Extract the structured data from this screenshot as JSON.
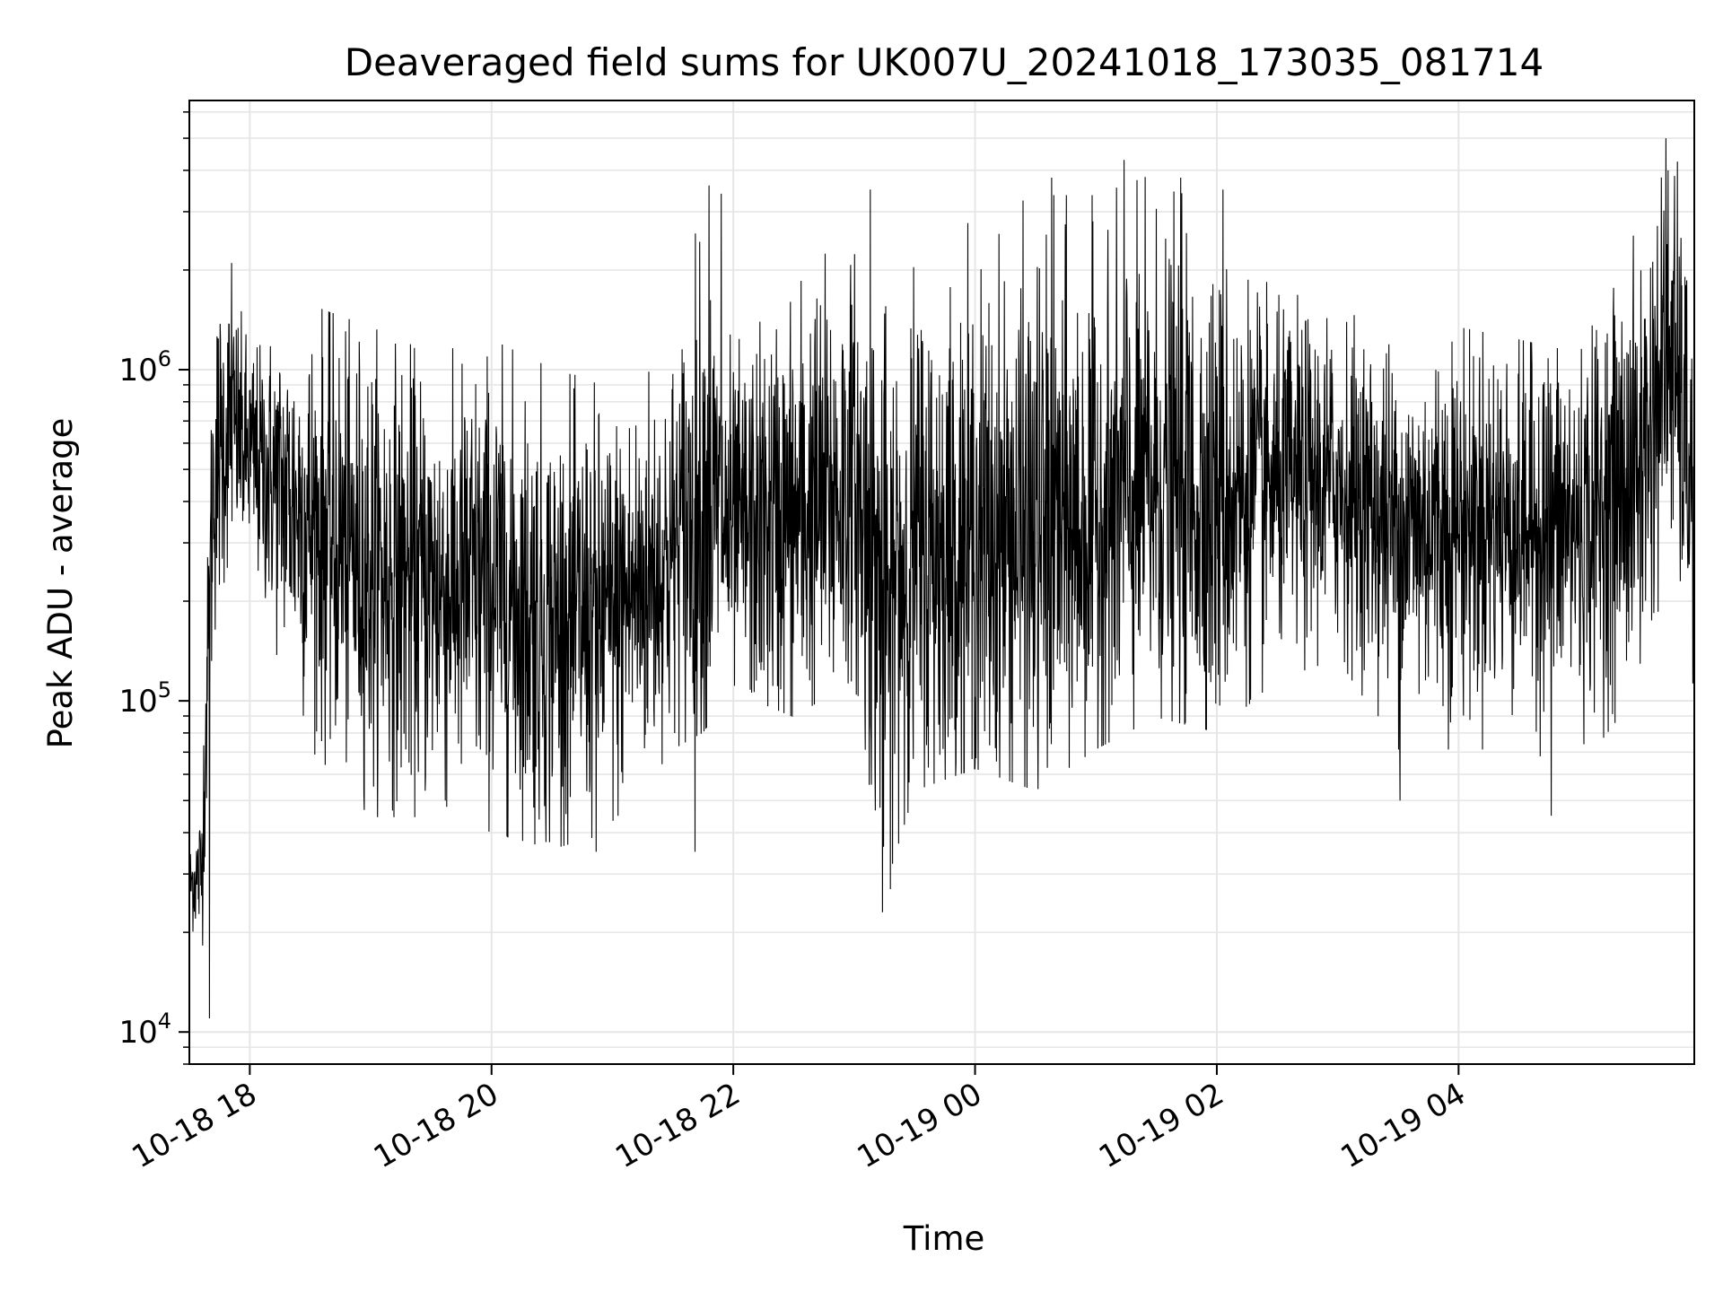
{
  "chart_data": {
    "type": "line",
    "title": "Deaveraged field sums for UK007U_20241018_173035_081714",
    "xlabel": "Time",
    "ylabel": "Peak ADU - average",
    "y_scale": "log",
    "grid": true,
    "x_range": [
      "2024-10-18 17:30",
      "2024-10-19 05:57"
    ],
    "ylim": [
      8000,
      6500000
    ],
    "x_ticks": [
      {
        "time": "2024-10-18 18:00",
        "label": "10-18 18"
      },
      {
        "time": "2024-10-18 20:00",
        "label": "10-18 20"
      },
      {
        "time": "2024-10-18 22:00",
        "label": "10-18 22"
      },
      {
        "time": "2024-10-19 00:00",
        "label": "10-19 00"
      },
      {
        "time": "2024-10-19 02:00",
        "label": "10-19 02"
      },
      {
        "time": "2024-10-19 04:00",
        "label": "10-19 04"
      }
    ],
    "y_ticks": [
      {
        "value": 10000,
        "base": "10",
        "exp": "4"
      },
      {
        "value": 100000,
        "base": "10",
        "exp": "5"
      },
      {
        "value": 1000000,
        "base": "10",
        "exp": "6"
      }
    ],
    "line_color": "#000000",
    "grid_color": "#e6e6e6",
    "envelope": [
      {
        "time": "2024-10-18 17:30",
        "low": 20000,
        "mid": 28000,
        "high": 35000
      },
      {
        "time": "2024-10-18 17:36",
        "low": 15000,
        "mid": 30000,
        "high": 45000
      },
      {
        "time": "2024-10-18 17:42",
        "low": 100000,
        "mid": 500000,
        "high": 1200000
      },
      {
        "time": "2024-10-18 17:50",
        "low": 300000,
        "mid": 700000,
        "high": 2000000
      },
      {
        "time": "2024-10-18 18:00",
        "low": 200000,
        "mid": 550000,
        "high": 1000000
      },
      {
        "time": "2024-10-18 18:30",
        "low": 80000,
        "mid": 350000,
        "high": 1400000
      },
      {
        "time": "2024-10-18 19:00",
        "low": 50000,
        "mid": 250000,
        "high": 1200000
      },
      {
        "time": "2024-10-18 19:30",
        "low": 50000,
        "mid": 220000,
        "high": 1000000
      },
      {
        "time": "2024-10-18 20:00",
        "low": 45000,
        "mid": 220000,
        "high": 1100000
      },
      {
        "time": "2024-10-18 20:30",
        "low": 40000,
        "mid": 170000,
        "high": 900000
      },
      {
        "time": "2024-10-18 21:00",
        "low": 45000,
        "mid": 180000,
        "high": 800000
      },
      {
        "time": "2024-10-18 21:30",
        "low": 80000,
        "mid": 280000,
        "high": 1300000
      },
      {
        "time": "2024-10-18 21:45",
        "low": 90000,
        "mid": 400000,
        "high": 3500000
      },
      {
        "time": "2024-10-18 22:00",
        "low": 120000,
        "mid": 320000,
        "high": 1200000
      },
      {
        "time": "2024-10-18 22:30",
        "low": 100000,
        "mid": 350000,
        "high": 2500000
      },
      {
        "time": "2024-10-18 23:00",
        "low": 130000,
        "mid": 450000,
        "high": 3000000
      },
      {
        "time": "2024-10-18 23:15",
        "low": 30000,
        "mid": 200000,
        "high": 1500000
      },
      {
        "time": "2024-10-18 23:30",
        "low": 60000,
        "mid": 280000,
        "high": 2500000
      },
      {
        "time": "2024-10-19 00:00",
        "low": 70000,
        "mid": 300000,
        "high": 2500000
      },
      {
        "time": "2024-10-19 00:30",
        "low": 60000,
        "mid": 320000,
        "high": 3000000
      },
      {
        "time": "2024-10-19 01:00",
        "low": 80000,
        "mid": 350000,
        "high": 3000000
      },
      {
        "time": "2024-10-19 01:30",
        "low": 100000,
        "mid": 450000,
        "high": 3500000
      },
      {
        "time": "2024-10-19 02:00",
        "low": 90000,
        "mid": 400000,
        "high": 2500000
      },
      {
        "time": "2024-10-19 02:30",
        "low": 130000,
        "mid": 450000,
        "high": 1500000
      },
      {
        "time": "2024-10-19 03:00",
        "low": 150000,
        "mid": 450000,
        "high": 1500000
      },
      {
        "time": "2024-10-19 03:30",
        "low": 80000,
        "mid": 330000,
        "high": 1000000
      },
      {
        "time": "2024-10-19 04:00",
        "low": 80000,
        "mid": 350000,
        "high": 1200000
      },
      {
        "time": "2024-10-19 04:30",
        "low": 80000,
        "mid": 350000,
        "high": 1100000
      },
      {
        "time": "2024-10-19 05:00",
        "low": 70000,
        "mid": 330000,
        "high": 1000000
      },
      {
        "time": "2024-10-19 05:30",
        "low": 120000,
        "mid": 500000,
        "high": 2500000
      },
      {
        "time": "2024-10-19 05:45",
        "low": 300000,
        "mid": 1200000,
        "high": 5000000
      },
      {
        "time": "2024-10-19 05:57",
        "low": 120000,
        "mid": 400000,
        "high": 2000000
      }
    ],
    "spikes": [
      {
        "time": "2024-10-18 17:40",
        "value": 11000
      },
      {
        "time": "2024-10-18 17:51",
        "value": 2100000
      },
      {
        "time": "2024-10-18 20:52",
        "value": 35000
      },
      {
        "time": "2024-10-18 21:41",
        "value": 35000
      },
      {
        "time": "2024-10-18 21:48",
        "value": 3600000
      },
      {
        "time": "2024-10-18 21:54",
        "value": 3400000
      },
      {
        "time": "2024-10-18 23:08",
        "value": 3500000
      },
      {
        "time": "2024-10-18 23:14",
        "value": 23000
      },
      {
        "time": "2024-10-18 23:18",
        "value": 27000
      },
      {
        "time": "2024-10-19 00:38",
        "value": 3800000
      },
      {
        "time": "2024-10-19 01:14",
        "value": 4300000
      },
      {
        "time": "2024-10-19 01:42",
        "value": 3800000
      },
      {
        "time": "2024-10-19 02:03",
        "value": 3500000
      },
      {
        "time": "2024-10-19 03:31",
        "value": 50000
      },
      {
        "time": "2024-10-19 04:46",
        "value": 45000
      },
      {
        "time": "2024-10-19 05:43",
        "value": 5000000
      }
    ]
  }
}
